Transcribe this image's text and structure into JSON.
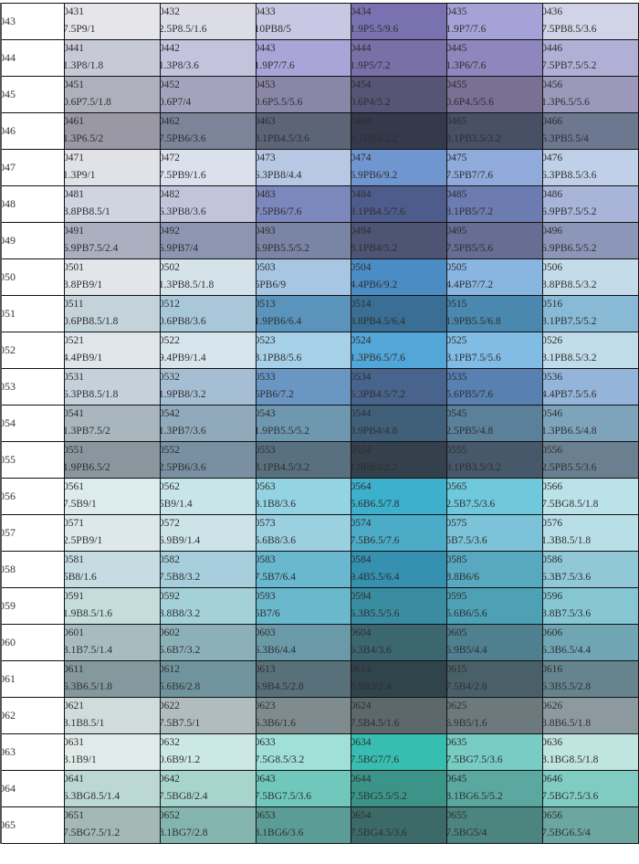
{
  "rows": [
    {
      "label": "043",
      "cells": [
        [
          "0431",
          "7.5P9/1",
          "#e6e6ea"
        ],
        [
          "0432",
          "2.5P8.5/1.6",
          "#dcdce6"
        ],
        [
          "0433",
          "10PB8/5",
          "#c8c8e4"
        ],
        [
          "0434",
          "1.9P5.5/9.6",
          "#7a72b0"
        ],
        [
          "0435",
          "1.9P7/7.6",
          "#a6a2d8"
        ],
        [
          "0436",
          "7.5PB8.5/3.6",
          "#d0d4e6"
        ]
      ]
    },
    {
      "label": "044",
      "cells": [
        [
          "0441",
          "1.3P8/1.8",
          "#c8c9d6"
        ],
        [
          "0442",
          "1.3P8/3.6",
          "#c4c2dc"
        ],
        [
          "0443",
          "1.9P7/7.6",
          "#aaa4d8"
        ],
        [
          "0444",
          "1.9P5/7.2",
          "#7a70a8"
        ],
        [
          "0445",
          "1.3P6/7.6",
          "#8e86bc"
        ],
        [
          "0446",
          "7.5PB7.5/5.2",
          "#b0b0d6"
        ]
      ]
    },
    {
      "label": "045",
      "cells": [
        [
          "0451",
          "0.6P7.5/1.8",
          "#b0b0bc"
        ],
        [
          "0452",
          "0.6P7/4",
          "#a4a2bc"
        ],
        [
          "0453",
          "0.6P5.5/5.6",
          "#8a86a8"
        ],
        [
          "0454",
          "0.6P4/5.2",
          "#585476"
        ],
        [
          "0455",
          "0.6P4.5/5.6",
          "#7a7094"
        ],
        [
          "0456",
          "1.3P6.5/5.6",
          "#9c98bc"
        ]
      ]
    },
    {
      "label": "046",
      "cells": [
        [
          "0461",
          "1.3P6.5/2",
          "#9a98a4"
        ],
        [
          "0462",
          "7.5PB6/3.6",
          "#7c849a"
        ],
        [
          "0463",
          "8.1PB4.5/3.6",
          "#5c6478"
        ],
        [
          "0464",
          "8.1PB3/2.2",
          "#343a4c"
        ],
        [
          "0465",
          "8.1PB3.5/3.2",
          "#485066"
        ],
        [
          "0466",
          "6.3PB5.5/4",
          "#6c7890"
        ]
      ]
    },
    {
      "label": "047",
      "cells": [
        [
          "0471",
          "1.3P9/1",
          "#e0e2e8"
        ],
        [
          "0472",
          "7.5PB9/1.6",
          "#dae0ec"
        ],
        [
          "0473",
          "6.3PB8/4.4",
          "#b8c8e4"
        ],
        [
          "0474",
          "6.9PB6/9.2",
          "#7096d0"
        ],
        [
          "0475",
          "7.5PB7/7.6",
          "#90aadc"
        ],
        [
          "0476",
          "6.3PB8.5/3.6",
          "#c0d0e8"
        ]
      ]
    },
    {
      "label": "048",
      "cells": [
        [
          "0481",
          "8.8PB8.5/1",
          "#d0d4e0"
        ],
        [
          "0482",
          "6.3PB8/3.6",
          "#c2c4dc"
        ],
        [
          "0483",
          "7.5PB6/7.6",
          "#7c88bc"
        ],
        [
          "0484",
          "8.1PB4.5/7.6",
          "#4e5c8c"
        ],
        [
          "0485",
          "8.1PB5/7.2",
          "#6c7cb0"
        ],
        [
          "0486",
          "6.9PB7.5/5.2",
          "#a8b4d8"
        ]
      ]
    },
    {
      "label": "049",
      "cells": [
        [
          "0491",
          "6.9PB7.5/2.4",
          "#aab0c0"
        ],
        [
          "0492",
          "6.9PB7/4",
          "#8c96b0"
        ],
        [
          "0493",
          "6.9PB5.5/5.2",
          "#7a84a4"
        ],
        [
          "0494",
          "8.1PB4/5.2",
          "#4e5474"
        ],
        [
          "0495",
          "7.5PB5/5.6",
          "#666e94"
        ],
        [
          "0496",
          "6.9PB6.5/5.2",
          "#8c96b8"
        ]
      ]
    },
    {
      "label": "050",
      "cells": [
        [
          "0501",
          "8.8PB9/1",
          "#e2e6ea"
        ],
        [
          "0502",
          "1.3PB8.5/1.8",
          "#d4e2ea"
        ],
        [
          "0503",
          "5PB6/9",
          "#a6c6e4"
        ],
        [
          "0504",
          "4.4PB6/9.2",
          "#4c8cc4"
        ],
        [
          "0505",
          "4.4PB7/7.2",
          "#88b6e0"
        ],
        [
          "0506",
          "3.8PB8.5/3.2",
          "#c4dcea"
        ]
      ]
    },
    {
      "label": "051",
      "cells": [
        [
          "0511",
          "0.6PB8.5/1.8",
          "#c4d2da"
        ],
        [
          "0512",
          "0.6PB8/3.6",
          "#a8c8da"
        ],
        [
          "0513",
          "1.9PB6/6.4",
          "#5a94bc"
        ],
        [
          "0514",
          "3.8PB4.5/6.4",
          "#3a6e94"
        ],
        [
          "0515",
          "1.9PB5.5/6.8",
          "#4a88b0"
        ],
        [
          "0516",
          "3.1PB7.5/5.2",
          "#88bad6"
        ]
      ]
    },
    {
      "label": "052",
      "cells": [
        [
          "0521",
          "4.4PB9/1",
          "#dee6ea"
        ],
        [
          "0522",
          "9.4PB9/1.4",
          "#d6e4ec"
        ],
        [
          "0523",
          "3.1PB8/5.6",
          "#a6d0e8"
        ],
        [
          "0524",
          "1.3PB6.5/7.6",
          "#52a6d8"
        ],
        [
          "0525",
          "3.1PB7.5/5.6",
          "#80bce4"
        ],
        [
          "0526",
          "3.1PB8.5/3.2",
          "#c0dcea"
        ]
      ]
    },
    {
      "label": "053",
      "cells": [
        [
          "0531",
          "6.3PB8.5/1.8",
          "#c4d0da"
        ],
        [
          "0532",
          "1.9PB8/3.2",
          "#a6bed4"
        ],
        [
          "0533",
          "5PB6/7.2",
          "#6a96c4"
        ],
        [
          "0534",
          "6.3PB4.5/7.2",
          "#48648c"
        ],
        [
          "0535",
          "5.6PB5/7.6",
          "#5880b0"
        ],
        [
          "0536",
          "4.4PB7.5/5.6",
          "#94b4da"
        ]
      ]
    },
    {
      "label": "054",
      "cells": [
        [
          "0541",
          "1.3PB7.5/2",
          "#a8b6be"
        ],
        [
          "0542",
          "1.3PB7/3.6",
          "#90aabc"
        ],
        [
          "0543",
          "1.9PB5.5/5.2",
          "#6e98b0"
        ],
        [
          "0544",
          "3.9PB4/4.8",
          "#40607a"
        ],
        [
          "0545",
          "2.5PB5/4.8",
          "#5a809a"
        ],
        [
          "0546",
          "1.3PB6.5/4.8",
          "#7ea4bc"
        ]
      ]
    },
    {
      "label": "055",
      "cells": [
        [
          "0551",
          "1.9PB6.5/2",
          "#8a969e"
        ],
        [
          "0552",
          "2.5PB6/3.6",
          "#7890a2"
        ],
        [
          "0553",
          "3.1PB4.5/3.2",
          "#587080"
        ],
        [
          "0554",
          "1.9PB3/2.2",
          "#34404c"
        ],
        [
          "0555",
          "3.1PB3.5/3.2",
          "#46586a"
        ],
        [
          "0556",
          "2.5PB5.5/3.6",
          "#6a8090"
        ]
      ]
    },
    {
      "label": "056",
      "cells": [
        [
          "0561",
          "7.5B9/1",
          "#dcecec"
        ],
        [
          "0562",
          "5B9/1.4",
          "#c8e6ea"
        ],
        [
          "0563",
          "3.1B8/3.6",
          "#94d4e2"
        ],
        [
          "0564",
          "5.6B6.5/7.8",
          "#3cb0cc"
        ],
        [
          "0565",
          "2.5B7.5/3.6",
          "#70c8dc"
        ],
        [
          "0566",
          "7.5BG8.5/1.8",
          "#bae2e8"
        ]
      ]
    },
    {
      "label": "057",
      "cells": [
        [
          "0571",
          "2.5PB9/1",
          "#dce8ea"
        ],
        [
          "0572",
          "6.9B9/1.4",
          "#cce4e8"
        ],
        [
          "0573",
          "5.6B8/3.6",
          "#9ad0e0"
        ],
        [
          "0574",
          "7.5B6.5/7.6",
          "#4cacc8"
        ],
        [
          "0575",
          "5B7.5/3.6",
          "#7cc2d8"
        ],
        [
          "0576",
          "1.3B8.5/1.8",
          "#b8dee8"
        ]
      ]
    },
    {
      "label": "058",
      "cells": [
        [
          "0581",
          "5B8/1.6",
          "#c4dce2"
        ],
        [
          "0582",
          "7.5B8/3.2",
          "#a6cedc"
        ],
        [
          "0583",
          "7.5B7/6.4",
          "#6ab8d0"
        ],
        [
          "0584",
          "9.4B5.5/6.4",
          "#3690b0"
        ],
        [
          "0585",
          "8.8B6/6",
          "#58a8c0"
        ],
        [
          "0586",
          "6.3B7.5/3.6",
          "#90c8d8"
        ]
      ]
    },
    {
      "label": "059",
      "cells": [
        [
          "0591",
          "1.9B8.5/1.6",
          "#c4dcdc"
        ],
        [
          "0592",
          "3.8B8/3.2",
          "#a4d0d8"
        ],
        [
          "0593",
          "5B7/6",
          "#6ab8cc"
        ],
        [
          "0594",
          "6.3B5.5/5.6",
          "#3a8ca0"
        ],
        [
          "0595",
          "5.6B6/5.6",
          "#4ea0b4"
        ],
        [
          "0596",
          "3.8B7.5/3.6",
          "#86c6d2"
        ]
      ]
    },
    {
      "label": "060",
      "cells": [
        [
          "0601",
          "3.1B7.5/1.4",
          "#a8bcc0"
        ],
        [
          "0602",
          "5.6B7/3.2",
          "#8cb0b8"
        ],
        [
          "0603",
          "6.3B6/4.4",
          "#6a9aa8"
        ],
        [
          "0604",
          "6.3B4/3.6",
          "#3c6670"
        ],
        [
          "0605",
          "6.9B5/4.4",
          "#4e8090"
        ],
        [
          "0606",
          "6.3B6.5/4.4",
          "#70a6b4"
        ]
      ]
    },
    {
      "label": "061",
      "cells": [
        [
          "0611",
          "6.3B6.5/1.8",
          "#84989e"
        ],
        [
          "0612",
          "5.6B6/2.8",
          "#70949e"
        ],
        [
          "0613",
          "6.9B4.5/2.8",
          "#58707a"
        ],
        [
          "0614",
          "6.9B3/2.4",
          "#30444c"
        ],
        [
          "0615",
          "7.5B4/2.8",
          "#4a6068"
        ],
        [
          "0616",
          "6.3B5.5/2.8",
          "#66848e"
        ]
      ]
    },
    {
      "label": "062",
      "cells": [
        [
          "0621",
          "3.1B8.5/1",
          "#d0dcdc"
        ],
        [
          "0622",
          "7.5B7.5/1",
          "#b0bcbe"
        ],
        [
          "0623",
          "6.3B6/1.6",
          "#7e8c90"
        ],
        [
          "0624",
          "7.5B4.5/1.6",
          "#5c686c"
        ],
        [
          "0625",
          "6.9B5/1.6",
          "#6c7a7e"
        ],
        [
          "0626",
          "8.8B6.5/1.8",
          "#8c9aa0"
        ]
      ]
    },
    {
      "label": "063",
      "cells": [
        [
          "0631",
          "3.1B9/1",
          "#e0eae8"
        ],
        [
          "0632",
          "0.6B9/1.2",
          "#cce8e6"
        ],
        [
          "0633",
          "7.5G8.5/3.2",
          "#a0e0d8"
        ],
        [
          "0634",
          "7.5BG7/7.6",
          "#38beb0"
        ],
        [
          "0635",
          "7.5BG7.5/3.6",
          "#78ccc4"
        ],
        [
          "0636",
          "3.1BG8.5/1.8",
          "#c0e4e0"
        ]
      ]
    },
    {
      "label": "064",
      "cells": [
        [
          "0641",
          "6.3BG8.5/1.4",
          "#bcd8d4"
        ],
        [
          "0642",
          "7.5BG8/2.4",
          "#a8d4ce"
        ],
        [
          "0643",
          "7.5BG7.5/3.6",
          "#70c8bc"
        ],
        [
          "0644",
          "7.5BG5.5/5.2",
          "#3c9488"
        ],
        [
          "0645",
          "8.1BG6.5/5.2",
          "#5aa8a0"
        ],
        [
          "0646",
          "7.5BG7.5/3.6",
          "#80ccc2"
        ]
      ]
    },
    {
      "label": "065",
      "cells": [
        [
          "0651",
          "7.5BG7.5/1.2",
          "#a4b8b6"
        ],
        [
          "0652",
          "8.1BG7/2.8",
          "#84b4ae"
        ],
        [
          "0653",
          "8.1BG6/3.6",
          "#5c9c96"
        ],
        [
          "0654",
          "7.5BG4.5/3.6",
          "#3c6a68"
        ],
        [
          "0655",
          "7.5BG5/4",
          "#4c8480"
        ],
        [
          "0656",
          "7.5BG6.5/4",
          "#6ca6a0"
        ]
      ]
    }
  ]
}
